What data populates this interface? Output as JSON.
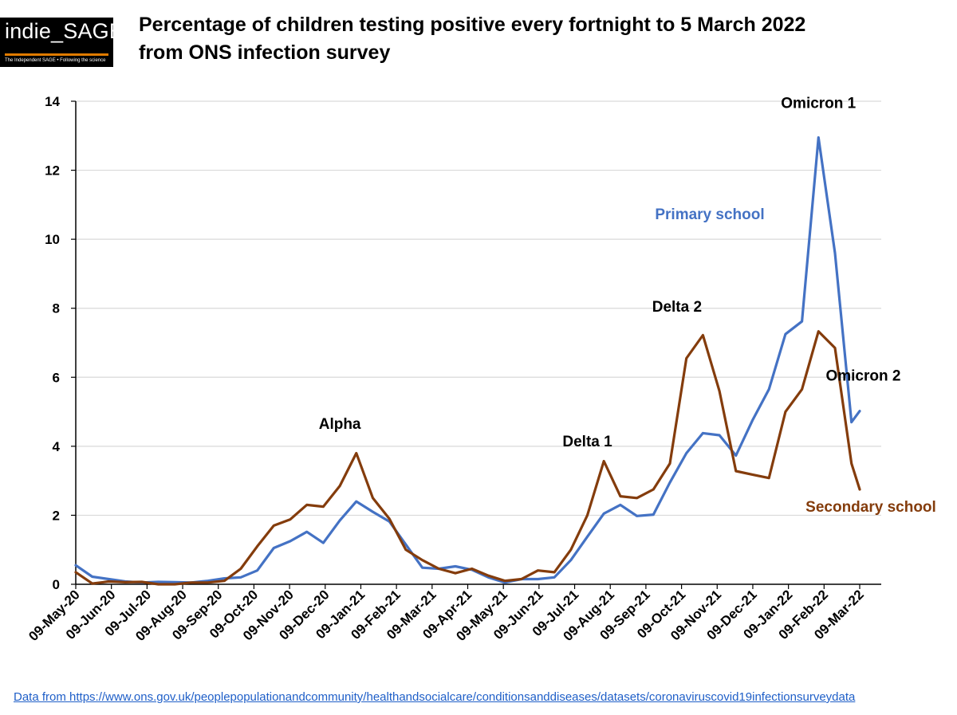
{
  "logo": {
    "name": "indie_SAGE",
    "tagline": "The Independent SAGE • Following the science"
  },
  "title": {
    "line1": "Percentage of children testing positive every fortnight to 5 March 2022",
    "line2": "from ONS infection survey"
  },
  "footer": {
    "label": "Data from ",
    "url": "https://www.ons.gov.uk/peoplepopulationandcommunity/healthandsocialcare/conditionsanddiseases/datasets/coronaviruscovid19infectionsurveydata"
  },
  "chart_data": {
    "type": "line",
    "title": "Percentage of children testing positive every fortnight to 5 March 2022 from ONS infection survey",
    "xlabel": "",
    "ylabel": "",
    "ylim": [
      0,
      14
    ],
    "yticks": [
      0,
      2,
      4,
      6,
      8,
      10,
      12,
      14
    ],
    "grid": "horizontal",
    "xtick_labels": [
      "09-May-20",
      "09-Jun-20",
      "09-Jul-20",
      "09-Aug-20",
      "09-Sep-20",
      "09-Oct-20",
      "09-Nov-20",
      "09-Dec-20",
      "09-Jan-21",
      "09-Feb-21",
      "09-Mar-21",
      "09-Apr-21",
      "09-May-21",
      "09-Jun-21",
      "09-Jul-21",
      "09-Aug-21",
      "09-Sep-21",
      "09-Oct-21",
      "09-Nov-21",
      "09-Dec-21",
      "09-Jan-22",
      "09-Feb-22",
      "09-Mar-22"
    ],
    "x": [
      "2020-05-09",
      "2020-05-23",
      "2020-06-06",
      "2020-06-20",
      "2020-07-04",
      "2020-07-18",
      "2020-08-01",
      "2020-08-15",
      "2020-08-29",
      "2020-09-12",
      "2020-09-26",
      "2020-10-10",
      "2020-10-24",
      "2020-11-07",
      "2020-11-21",
      "2020-12-05",
      "2020-12-19",
      "2021-01-02",
      "2021-01-16",
      "2021-01-30",
      "2021-02-13",
      "2021-02-27",
      "2021-03-13",
      "2021-03-27",
      "2021-04-10",
      "2021-04-24",
      "2021-05-08",
      "2021-05-22",
      "2021-06-05",
      "2021-06-19",
      "2021-07-03",
      "2021-07-17",
      "2021-07-31",
      "2021-08-14",
      "2021-08-28",
      "2021-09-11",
      "2021-09-25",
      "2021-10-09",
      "2021-10-23",
      "2021-11-06",
      "2021-11-20",
      "2021-12-04",
      "2021-12-18",
      "2022-01-01",
      "2022-01-15",
      "2022-01-29",
      "2022-02-12",
      "2022-02-26",
      "2022-03-05"
    ],
    "series": [
      {
        "name": "Primary school",
        "color": "#4472c4",
        "values": [
          0.55,
          0.22,
          0.15,
          0.08,
          0.05,
          0.07,
          0.06,
          0.05,
          0.1,
          0.17,
          0.2,
          0.4,
          1.05,
          1.25,
          1.52,
          1.2,
          1.85,
          2.4,
          2.1,
          1.82,
          1.15,
          0.48,
          0.45,
          0.52,
          0.42,
          0.2,
          0.05,
          0.15,
          0.15,
          0.2,
          0.7,
          1.38,
          2.05,
          2.3,
          1.98,
          2.02,
          2.95,
          3.8,
          4.38,
          4.32,
          3.73,
          4.75,
          5.65,
          7.25,
          7.62,
          12.95,
          9.6,
          4.7,
          5.02
        ]
      },
      {
        "name": "Secondary school",
        "color": "#843c0c",
        "values": [
          0.35,
          0.02,
          0.08,
          0.06,
          0.07,
          0.0,
          0.0,
          0.05,
          0.05,
          0.1,
          0.45,
          1.1,
          1.7,
          1.88,
          2.3,
          2.25,
          2.85,
          3.8,
          2.5,
          1.9,
          1.0,
          0.7,
          0.45,
          0.32,
          0.45,
          0.25,
          0.1,
          0.15,
          0.4,
          0.35,
          1.0,
          2.0,
          3.57,
          2.55,
          2.5,
          2.75,
          3.5,
          6.55,
          7.22,
          5.6,
          3.28,
          3.18,
          3.08,
          5.0,
          5.65,
          7.33,
          6.85,
          3.5,
          2.75
        ]
      }
    ],
    "annotations": [
      {
        "text": "Alpha",
        "x": "2020-12-19",
        "y": 4.5
      },
      {
        "text": "Delta 1",
        "x": "2021-07-17",
        "y": 4.0
      },
      {
        "text": "Delta 2",
        "x": "2021-10-01",
        "y": 7.9
      },
      {
        "text": "Omicron 1",
        "x": "2022-01-29",
        "y": 13.8
      },
      {
        "text": "Omicron 2",
        "x": "2022-03-08",
        "y": 5.9
      }
    ],
    "legend": [
      {
        "text": "Primary school",
        "color": "#4472c4",
        "placement": "upper-right inside plot"
      },
      {
        "text": "Secondary school",
        "color": "#843c0c",
        "placement": "lower-right inside plot"
      }
    ]
  }
}
